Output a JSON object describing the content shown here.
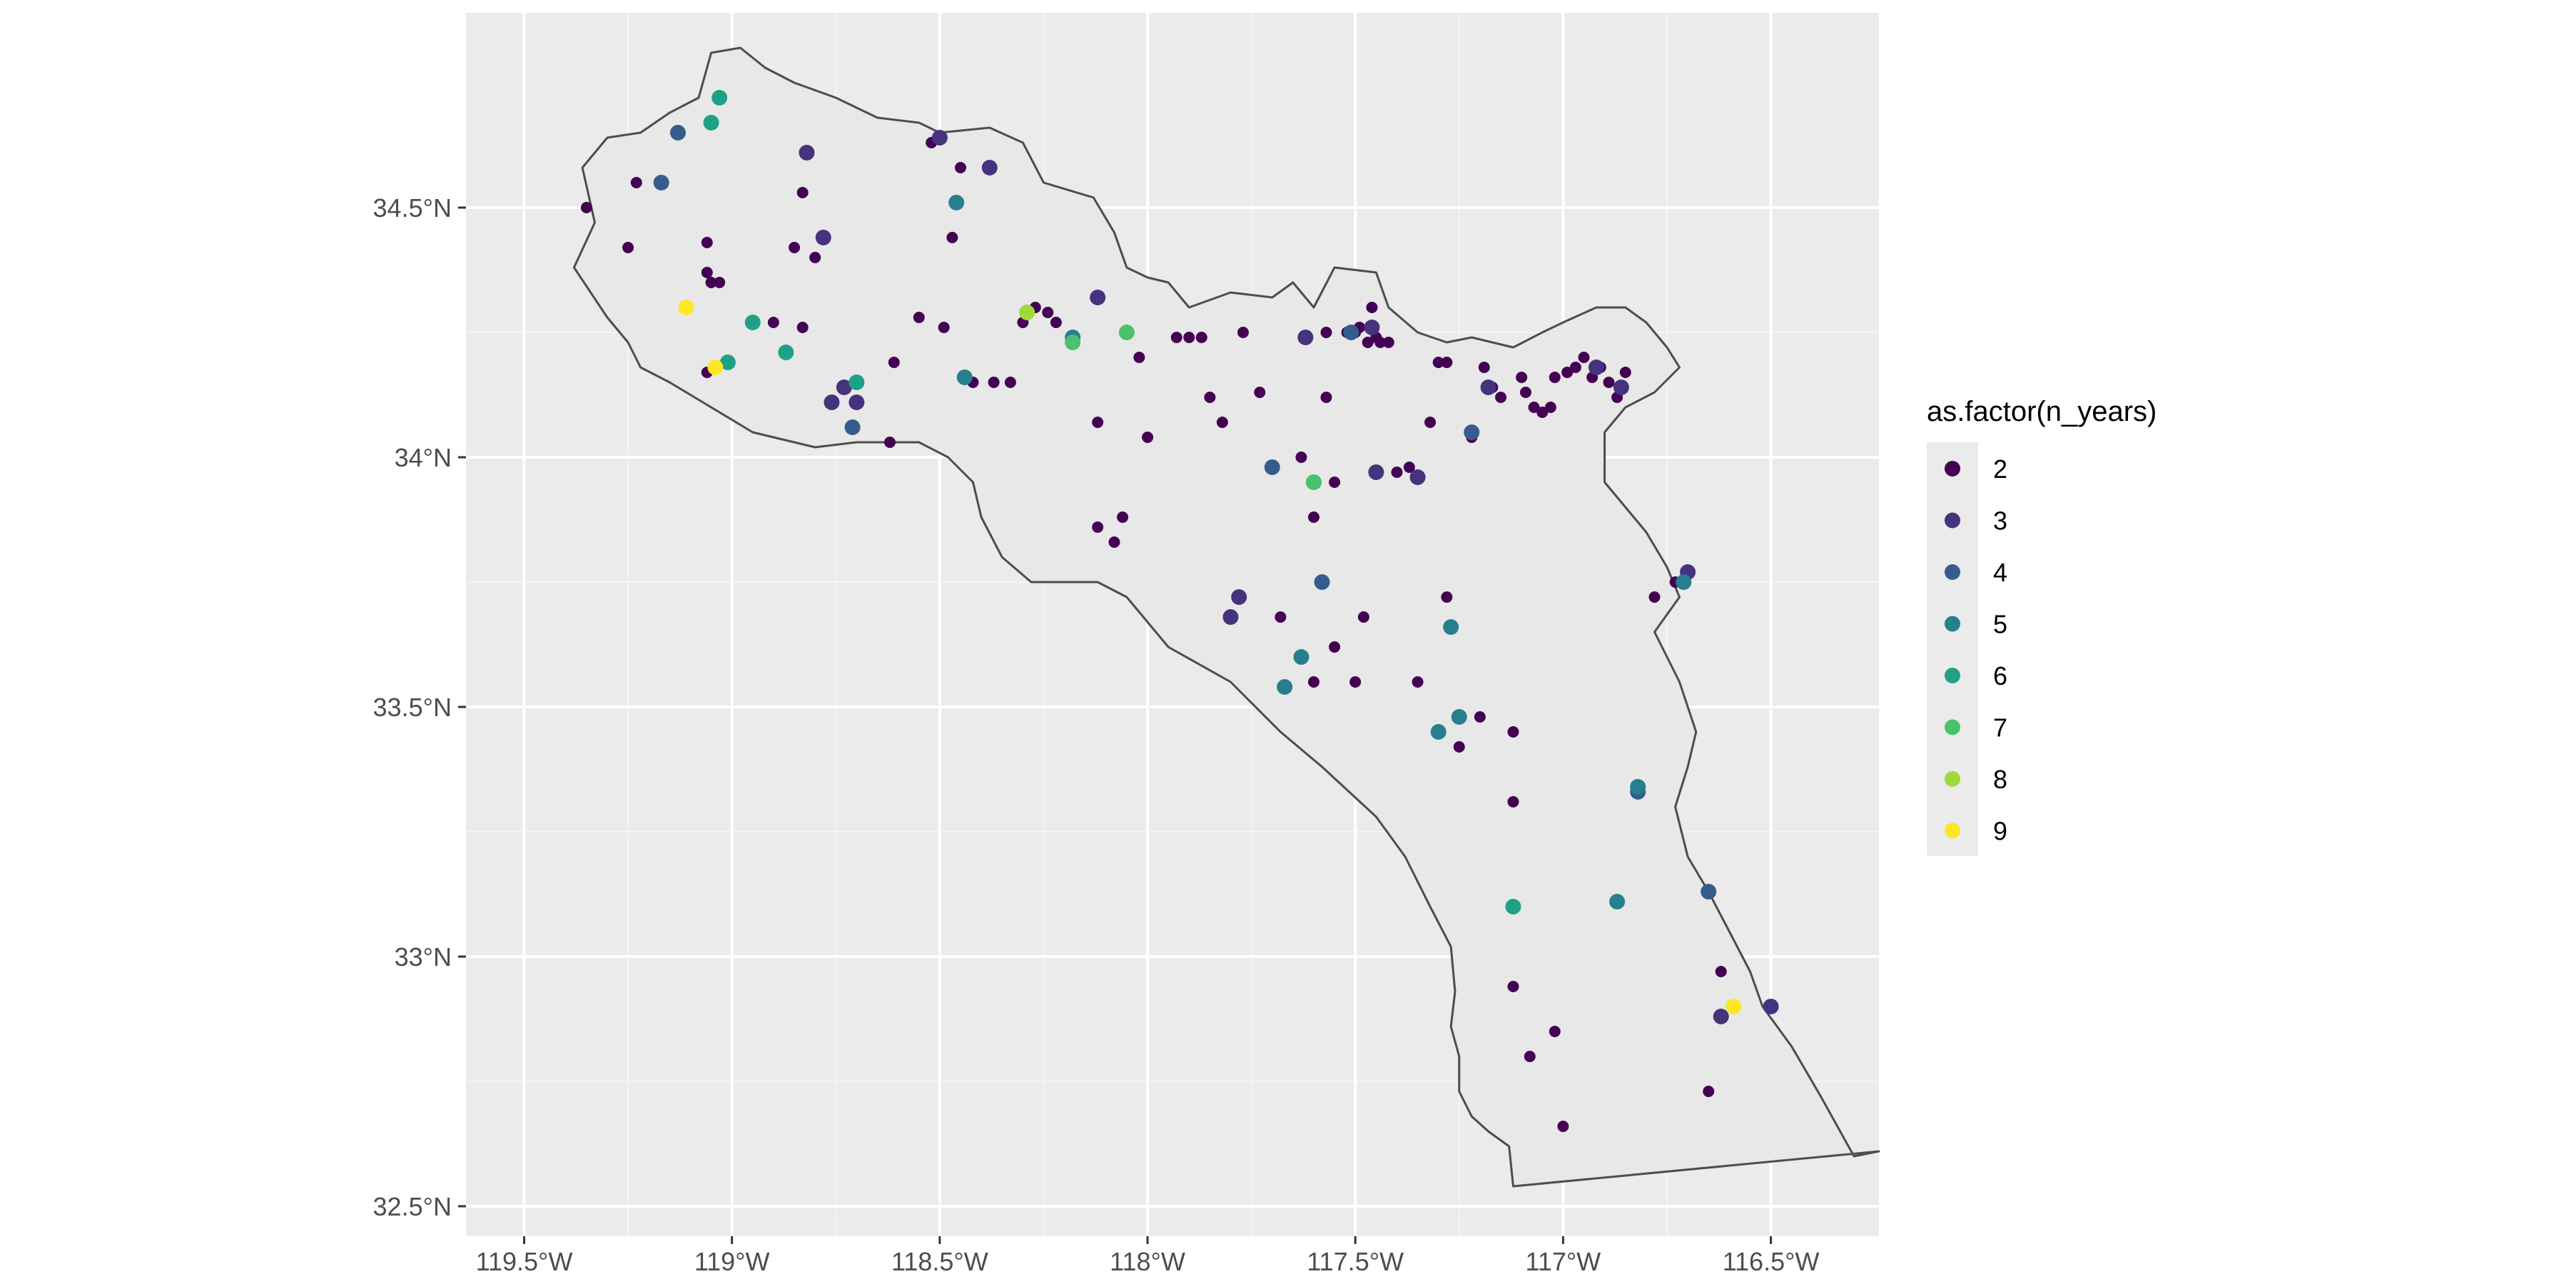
{
  "chart_data": {
    "type": "map",
    "title": "",
    "xlabel": "",
    "ylabel": "",
    "xlim": [
      -119.64,
      -116.24
    ],
    "ylim": [
      32.44,
      34.89
    ],
    "x_ticks": [
      {
        "value": -119.5,
        "label": "119.5°W"
      },
      {
        "value": -119.0,
        "label": "119°W"
      },
      {
        "value": -118.5,
        "label": "118.5°W"
      },
      {
        "value": -118.0,
        "label": "118°W"
      },
      {
        "value": -117.5,
        "label": "117.5°W"
      },
      {
        "value": -117.0,
        "label": "117°W"
      },
      {
        "value": -116.5,
        "label": "116.5°W"
      }
    ],
    "y_ticks": [
      {
        "value": 34.5,
        "label": "34.5°N"
      },
      {
        "value": 34.0,
        "label": "34°N"
      },
      {
        "value": 33.5,
        "label": "33.5°N"
      },
      {
        "value": 33.0,
        "label": "33°N"
      },
      {
        "value": 32.5,
        "label": "32.5°N"
      }
    ],
    "grid": true,
    "legend": {
      "title": "as.factor(n_years)",
      "position": "right",
      "entries": [
        {
          "label": "2",
          "color": "#440154"
        },
        {
          "label": "3",
          "color": "#46337E"
        },
        {
          "label": "4",
          "color": "#365C8D"
        },
        {
          "label": "5",
          "color": "#277F8E"
        },
        {
          "label": "6",
          "color": "#1FA187"
        },
        {
          "label": "7",
          "color": "#4AC16D"
        },
        {
          "label": "8",
          "color": "#9FDA3A"
        },
        {
          "label": "9",
          "color": "#FDE725"
        }
      ]
    },
    "regions": [
      {
        "name": "",
        "coords": [
          [
            -119.38,
            34.38
          ],
          [
            -119.33,
            34.47
          ],
          [
            -119.36,
            34.58
          ],
          [
            -119.3,
            34.64
          ],
          [
            -119.22,
            34.65
          ],
          [
            -119.15,
            34.69
          ],
          [
            -119.08,
            34.72
          ],
          [
            -119.05,
            34.81
          ],
          [
            -118.98,
            34.82
          ],
          [
            -118.92,
            34.78
          ],
          [
            -118.85,
            34.75
          ],
          [
            -118.75,
            34.72
          ],
          [
            -118.65,
            34.68
          ],
          [
            -118.55,
            34.67
          ],
          [
            -118.5,
            34.65
          ],
          [
            -118.38,
            34.66
          ],
          [
            -118.3,
            34.63
          ],
          [
            -118.25,
            34.55
          ],
          [
            -118.13,
            34.52
          ],
          [
            -118.08,
            34.45
          ],
          [
            -118.05,
            34.38
          ],
          [
            -118.0,
            34.36
          ],
          [
            -117.95,
            34.35
          ],
          [
            -117.9,
            34.3
          ],
          [
            -117.8,
            34.33
          ],
          [
            -117.7,
            34.32
          ],
          [
            -117.65,
            34.35
          ],
          [
            -117.6,
            34.3
          ],
          [
            -117.55,
            34.38
          ],
          [
            -117.45,
            34.37
          ],
          [
            -117.42,
            34.3
          ],
          [
            -117.35,
            34.25
          ],
          [
            -117.28,
            34.23
          ],
          [
            -117.22,
            34.24
          ],
          [
            -117.12,
            34.22
          ],
          [
            -117.05,
            34.25
          ],
          [
            -117.0,
            34.27
          ],
          [
            -116.92,
            34.3
          ],
          [
            -116.85,
            34.3
          ],
          [
            -116.8,
            34.27
          ],
          [
            -116.75,
            34.22
          ],
          [
            -116.72,
            34.18
          ],
          [
            -116.78,
            34.13
          ],
          [
            -116.85,
            34.1
          ],
          [
            -116.9,
            34.05
          ],
          [
            -116.9,
            33.95
          ],
          [
            -116.87,
            33.92
          ],
          [
            -116.8,
            33.85
          ],
          [
            -116.75,
            33.78
          ],
          [
            -116.72,
            33.72
          ],
          [
            -116.78,
            33.65
          ],
          [
            -116.75,
            33.6
          ],
          [
            -116.72,
            33.55
          ],
          [
            -116.68,
            33.45
          ],
          [
            -116.7,
            33.38
          ],
          [
            -116.73,
            33.3
          ],
          [
            -116.7,
            33.2
          ],
          [
            -116.65,
            33.13
          ],
          [
            -116.6,
            33.05
          ],
          [
            -116.55,
            32.97
          ],
          [
            -116.52,
            32.9
          ],
          [
            -116.45,
            32.82
          ],
          [
            -116.38,
            32.72
          ],
          [
            -116.3,
            32.6
          ],
          [
            -116.24,
            32.61
          ],
          [
            -117.12,
            32.54
          ],
          [
            -117.13,
            32.62
          ],
          [
            -117.18,
            32.65
          ],
          [
            -117.22,
            32.68
          ],
          [
            -117.25,
            32.73
          ],
          [
            -117.25,
            32.8
          ],
          [
            -117.27,
            32.86
          ],
          [
            -117.26,
            32.93
          ],
          [
            -117.27,
            33.02
          ],
          [
            -117.32,
            33.1
          ],
          [
            -117.38,
            33.2
          ],
          [
            -117.45,
            33.28
          ],
          [
            -117.58,
            33.38
          ],
          [
            -117.68,
            33.45
          ],
          [
            -117.8,
            33.55
          ],
          [
            -117.95,
            33.62
          ],
          [
            -118.05,
            33.72
          ],
          [
            -118.12,
            33.75
          ],
          [
            -118.28,
            33.75
          ],
          [
            -118.35,
            33.8
          ],
          [
            -118.4,
            33.88
          ],
          [
            -118.42,
            33.95
          ],
          [
            -118.48,
            34.0
          ],
          [
            -118.55,
            34.03
          ],
          [
            -118.7,
            34.03
          ],
          [
            -118.8,
            34.02
          ],
          [
            -118.95,
            34.05
          ],
          [
            -119.05,
            34.1
          ],
          [
            -119.15,
            34.15
          ],
          [
            -119.22,
            34.18
          ],
          [
            -119.25,
            34.23
          ],
          [
            -119.3,
            34.28
          ],
          [
            -119.38,
            34.38
          ]
        ]
      }
    ],
    "series": [
      {
        "name": "2",
        "color": "#440154",
        "points": [
          [
            -119.35,
            34.5
          ],
          [
            -119.25,
            34.42
          ],
          [
            -119.23,
            34.55
          ],
          [
            -119.06,
            34.43
          ],
          [
            -119.06,
            34.37
          ],
          [
            -119.05,
            34.35
          ],
          [
            -119.03,
            34.35
          ],
          [
            -119.06,
            34.17
          ],
          [
            -118.9,
            34.27
          ],
          [
            -118.85,
            34.42
          ],
          [
            -118.83,
            34.53
          ],
          [
            -118.83,
            34.26
          ],
          [
            -118.8,
            34.4
          ],
          [
            -118.61,
            34.19
          ],
          [
            -118.62,
            34.03
          ],
          [
            -118.55,
            34.28
          ],
          [
            -118.52,
            34.63
          ],
          [
            -118.49,
            34.26
          ],
          [
            -118.47,
            34.44
          ],
          [
            -118.45,
            34.58
          ],
          [
            -118.42,
            34.15
          ],
          [
            -118.37,
            34.15
          ],
          [
            -118.33,
            34.15
          ],
          [
            -118.3,
            34.27
          ],
          [
            -118.27,
            34.3
          ],
          [
            -118.24,
            34.29
          ],
          [
            -118.22,
            34.27
          ],
          [
            -118.12,
            34.07
          ],
          [
            -118.12,
            33.86
          ],
          [
            -118.08,
            33.83
          ],
          [
            -118.06,
            33.88
          ],
          [
            -118.02,
            34.2
          ],
          [
            -118.0,
            34.04
          ],
          [
            -117.93,
            34.24
          ],
          [
            -117.9,
            34.24
          ],
          [
            -117.87,
            34.24
          ],
          [
            -117.85,
            34.12
          ],
          [
            -117.82,
            34.07
          ],
          [
            -117.77,
            34.25
          ],
          [
            -117.73,
            34.13
          ],
          [
            -117.68,
            33.68
          ],
          [
            -117.63,
            34.0
          ],
          [
            -117.6,
            33.88
          ],
          [
            -117.57,
            34.12
          ],
          [
            -117.57,
            34.25
          ],
          [
            -117.55,
            33.95
          ],
          [
            -117.52,
            34.25
          ],
          [
            -117.5,
            34.25
          ],
          [
            -117.49,
            34.26
          ],
          [
            -117.47,
            34.23
          ],
          [
            -117.46,
            34.3
          ],
          [
            -117.45,
            34.24
          ],
          [
            -117.44,
            34.23
          ],
          [
            -117.42,
            34.23
          ],
          [
            -117.4,
            33.97
          ],
          [
            -117.37,
            33.98
          ],
          [
            -117.32,
            34.07
          ],
          [
            -117.3,
            34.19
          ],
          [
            -117.28,
            34.19
          ],
          [
            -117.22,
            34.04
          ],
          [
            -117.19,
            34.18
          ],
          [
            -117.17,
            34.14
          ],
          [
            -117.15,
            34.12
          ],
          [
            -117.1,
            34.16
          ],
          [
            -117.09,
            34.13
          ],
          [
            -117.07,
            34.1
          ],
          [
            -117.05,
            34.09
          ],
          [
            -117.03,
            34.1
          ],
          [
            -117.02,
            34.16
          ],
          [
            -116.99,
            34.17
          ],
          [
            -116.97,
            34.18
          ],
          [
            -116.95,
            34.2
          ],
          [
            -116.93,
            34.16
          ],
          [
            -116.91,
            34.18
          ],
          [
            -116.89,
            34.15
          ],
          [
            -116.87,
            34.12
          ],
          [
            -116.85,
            34.17
          ],
          [
            -117.48,
            33.68
          ],
          [
            -117.28,
            33.72
          ],
          [
            -117.35,
            33.55
          ],
          [
            -117.5,
            33.55
          ],
          [
            -117.6,
            33.55
          ],
          [
            -117.55,
            33.62
          ],
          [
            -117.25,
            33.42
          ],
          [
            -117.2,
            33.48
          ],
          [
            -117.12,
            33.45
          ],
          [
            -117.12,
            33.31
          ],
          [
            -117.12,
            32.94
          ],
          [
            -117.08,
            32.8
          ],
          [
            -117.02,
            32.85
          ],
          [
            -117.0,
            32.66
          ],
          [
            -116.62,
            32.97
          ],
          [
            -116.65,
            32.73
          ],
          [
            -116.78,
            33.72
          ],
          [
            -116.73,
            33.75
          ]
        ]
      },
      {
        "name": "3",
        "color": "#46337E",
        "points": [
          [
            -118.82,
            34.61
          ],
          [
            -118.78,
            34.44
          ],
          [
            -118.73,
            34.14
          ],
          [
            -118.7,
            34.11
          ],
          [
            -118.76,
            34.11
          ],
          [
            -118.5,
            34.64
          ],
          [
            -118.38,
            34.58
          ],
          [
            -118.12,
            34.32
          ],
          [
            -117.62,
            34.24
          ],
          [
            -117.46,
            34.26
          ],
          [
            -117.45,
            33.97
          ],
          [
            -117.35,
            33.96
          ],
          [
            -117.18,
            34.14
          ],
          [
            -116.92,
            34.18
          ],
          [
            -116.86,
            34.14
          ],
          [
            -116.7,
            33.77
          ],
          [
            -117.78,
            33.72
          ],
          [
            -117.8,
            33.68
          ],
          [
            -116.5,
            32.9
          ],
          [
            -116.62,
            32.88
          ]
        ]
      },
      {
        "name": "4",
        "color": "#365C8D",
        "points": [
          [
            -119.13,
            34.65
          ],
          [
            -119.17,
            34.55
          ],
          [
            -118.71,
            34.06
          ],
          [
            -117.7,
            33.98
          ],
          [
            -117.58,
            33.75
          ],
          [
            -117.22,
            34.05
          ],
          [
            -116.82,
            33.33
          ],
          [
            -116.65,
            33.13
          ],
          [
            -117.51,
            34.25
          ]
        ]
      },
      {
        "name": "5",
        "color": "#277F8E",
        "points": [
          [
            -118.46,
            34.51
          ],
          [
            -118.44,
            34.16
          ],
          [
            -118.18,
            34.24
          ],
          [
            -117.27,
            33.66
          ],
          [
            -117.63,
            33.6
          ],
          [
            -117.67,
            33.54
          ],
          [
            -117.25,
            33.48
          ],
          [
            -117.3,
            33.45
          ],
          [
            -116.87,
            33.11
          ],
          [
            -116.71,
            33.75
          ],
          [
            -116.82,
            33.34
          ]
        ]
      },
      {
        "name": "6",
        "color": "#1FA187",
        "points": [
          [
            -119.03,
            34.72
          ],
          [
            -119.05,
            34.67
          ],
          [
            -118.95,
            34.27
          ],
          [
            -119.01,
            34.19
          ],
          [
            -118.87,
            34.21
          ],
          [
            -118.7,
            34.15
          ],
          [
            -117.12,
            33.1
          ],
          [
            -117.6,
            33.95
          ]
        ]
      },
      {
        "name": "7",
        "color": "#4AC16D",
        "points": [
          [
            -118.05,
            34.25
          ],
          [
            -118.18,
            34.23
          ],
          [
            -117.6,
            33.95
          ]
        ]
      },
      {
        "name": "8",
        "color": "#9FDA3A",
        "points": [
          [
            -118.29,
            34.29
          ]
        ]
      },
      {
        "name": "9",
        "color": "#FDE725",
        "points": [
          [
            -119.11,
            34.3
          ],
          [
            -119.04,
            34.18
          ],
          [
            -116.59,
            32.9
          ]
        ]
      }
    ]
  }
}
